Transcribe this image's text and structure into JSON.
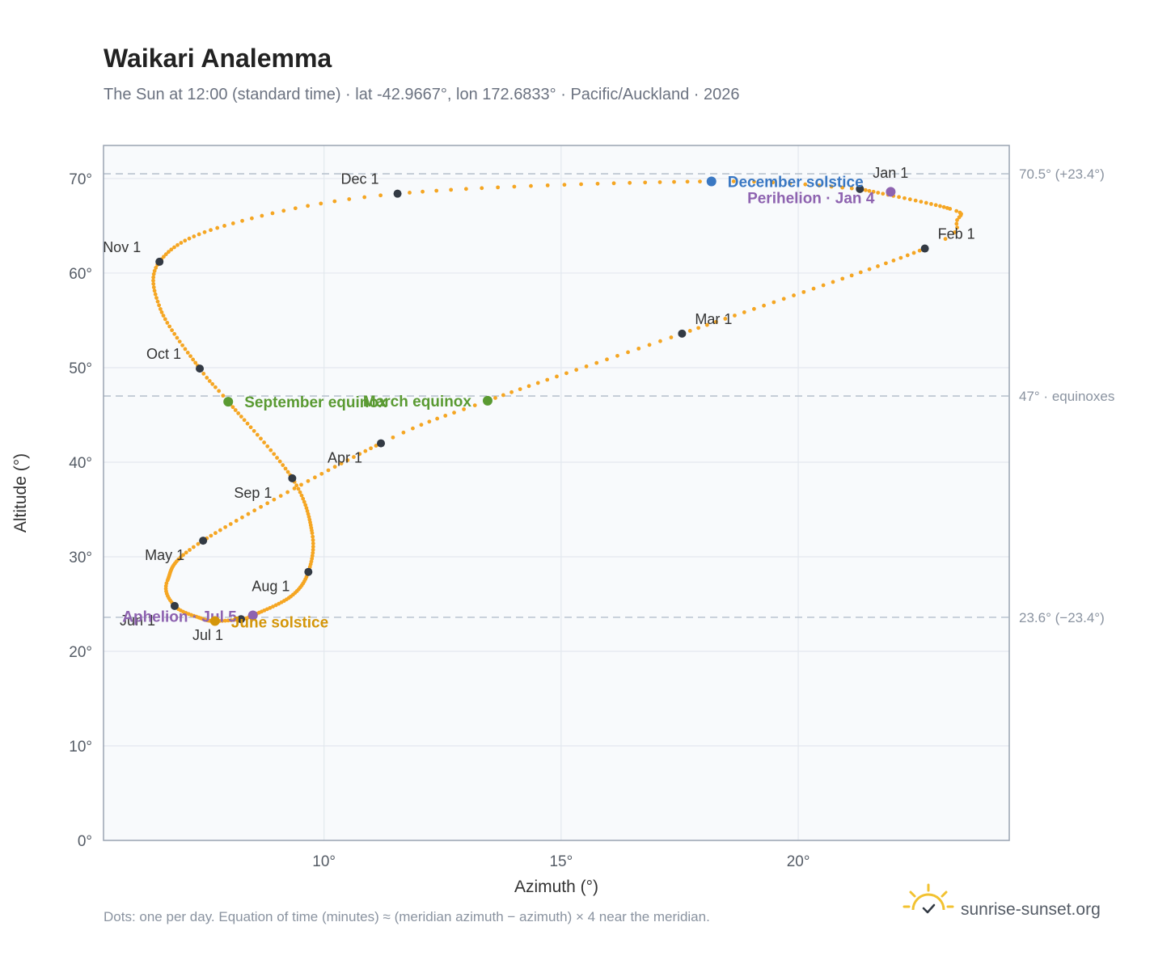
{
  "header": {
    "title": "Waikari Analemma",
    "subtitle": "The Sun at 12:00 (standard time) · lat -42.9667°, lon 172.6833° · Pacific/Auckland · 2026"
  },
  "footer": {
    "note": "Dots: one per day. Equation of time (minutes) ≈ (meridian azimuth − azimuth) × 4 near the meridian.",
    "brand": "sunrise-sunset.org"
  },
  "chart_data": {
    "type": "scatter",
    "xlabel": "Azimuth (°)",
    "ylabel": "Altitude (°)",
    "xlim": [
      5.35,
      24.45
    ],
    "ylim": [
      0,
      73.5
    ],
    "xticks": [
      {
        "v": 10,
        "label": "10°"
      },
      {
        "v": 15,
        "label": "15°"
      },
      {
        "v": 20,
        "label": "20°"
      }
    ],
    "yticks": [
      {
        "v": 0,
        "label": "0°"
      },
      {
        "v": 10,
        "label": "10°"
      },
      {
        "v": 20,
        "label": "20°"
      },
      {
        "v": 30,
        "label": "30°"
      },
      {
        "v": 40,
        "label": "40°"
      },
      {
        "v": 50,
        "label": "50°"
      },
      {
        "v": 60,
        "label": "60°"
      },
      {
        "v": 70,
        "label": "70°"
      }
    ],
    "grid": true,
    "reference_lines": [
      {
        "y": 70.5,
        "label": "70.5° (+23.4°)"
      },
      {
        "y": 47,
        "label": "47° · equinoxes"
      },
      {
        "y": 23.6,
        "label": "23.6° (−23.4°)"
      }
    ],
    "curve_color": "#f5a623",
    "month_color": "#333a44",
    "months": [
      {
        "label": "Jan 1",
        "az": 21.3,
        "alt": 68.9
      },
      {
        "label": "Feb 1",
        "az": 22.67,
        "alt": 62.6
      },
      {
        "label": "Mar 1",
        "az": 17.55,
        "alt": 53.6
      },
      {
        "label": "Apr 1",
        "az": 11.2,
        "alt": 42.0
      },
      {
        "label": "May 1",
        "az": 7.45,
        "alt": 31.7
      },
      {
        "label": "Jun 1",
        "az": 6.85,
        "alt": 24.8
      },
      {
        "label": "Jul 1",
        "az": 8.25,
        "alt": 23.4
      },
      {
        "label": "Aug 1",
        "az": 9.67,
        "alt": 28.4
      },
      {
        "label": "Sep 1",
        "az": 9.33,
        "alt": 38.3
      },
      {
        "label": "Oct 1",
        "az": 7.38,
        "alt": 49.9
      },
      {
        "label": "Nov 1",
        "az": 6.53,
        "alt": 61.2
      },
      {
        "label": "Dec 1",
        "az": 11.55,
        "alt": 68.4
      }
    ],
    "events": [
      {
        "label": "December solstice",
        "az": 18.17,
        "alt": 69.7,
        "color": "#3a78c3"
      },
      {
        "label": "Perihelion · Jan 4",
        "az": 21.95,
        "alt": 68.6,
        "color": "#8e63b0"
      },
      {
        "label": "March equinox",
        "az": 13.45,
        "alt": 46.5,
        "color": "#5a9a32"
      },
      {
        "label": "September equinox",
        "az": 7.98,
        "alt": 46.4,
        "color": "#5a9a32"
      },
      {
        "label": "Aphelion · Jul 5",
        "az": 8.5,
        "alt": 23.8,
        "color": "#8e63b0"
      },
      {
        "label": "June solstice",
        "az": 7.7,
        "alt": 23.2,
        "color": "#d4960a"
      }
    ],
    "path_keypoints": [
      [
        0,
        21.3,
        68.9
      ],
      [
        20,
        23.2,
        66.8
      ],
      [
        26,
        23.35,
        65.6
      ],
      [
        31,
        22.67,
        62.6
      ],
      [
        59,
        17.55,
        53.6
      ],
      [
        79,
        13.45,
        46.5
      ],
      [
        90,
        11.2,
        42.0
      ],
      [
        120,
        7.45,
        31.7
      ],
      [
        140,
        6.7,
        27.5
      ],
      [
        151,
        6.85,
        24.8
      ],
      [
        162,
        7.4,
        23.5
      ],
      [
        171,
        7.7,
        23.2
      ],
      [
        181,
        8.25,
        23.4
      ],
      [
        185,
        8.5,
        23.8
      ],
      [
        200,
        9.3,
        25.8
      ],
      [
        212,
        9.67,
        28.4
      ],
      [
        225,
        9.75,
        32.5
      ],
      [
        243,
        9.33,
        38.3
      ],
      [
        265,
        7.98,
        46.4
      ],
      [
        273,
        7.38,
        49.9
      ],
      [
        290,
        6.55,
        56.2
      ],
      [
        304,
        6.53,
        61.2
      ],
      [
        320,
        7.9,
        65.0
      ],
      [
        334,
        11.55,
        68.4
      ],
      [
        355,
        18.17,
        69.7
      ],
      [
        365,
        21.3,
        68.9
      ]
    ]
  }
}
